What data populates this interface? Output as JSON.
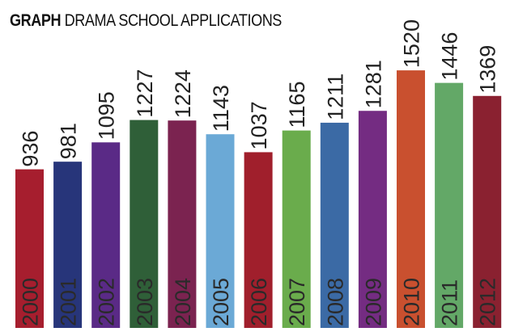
{
  "header": {
    "bold_word": "GRAPH",
    "rest": "DRAMA SCHOOL APPLICATIONS"
  },
  "chart_data": {
    "type": "bar",
    "title": "GRAPH DRAMA SCHOOL APPLICATIONS",
    "xlabel": "",
    "ylabel": "",
    "categories": [
      "2000",
      "2001",
      "2002",
      "2003",
      "2004",
      "2005",
      "2006",
      "2007",
      "2008",
      "2009",
      "2010",
      "2011",
      "2012"
    ],
    "values": [
      936,
      981,
      1095,
      1227,
      1224,
      1143,
      1037,
      1165,
      1211,
      1281,
      1520,
      1446,
      1369
    ],
    "colors": [
      "#a61e2e",
      "#27357a",
      "#5a2a86",
      "#2f5f38",
      "#7b2350",
      "#6ba9d6",
      "#a01f2c",
      "#6aac4c",
      "#3b6aa5",
      "#742c82",
      "#c9502f",
      "#63a867",
      "#8a2130"
    ],
    "grid": false,
    "legend": "none"
  }
}
